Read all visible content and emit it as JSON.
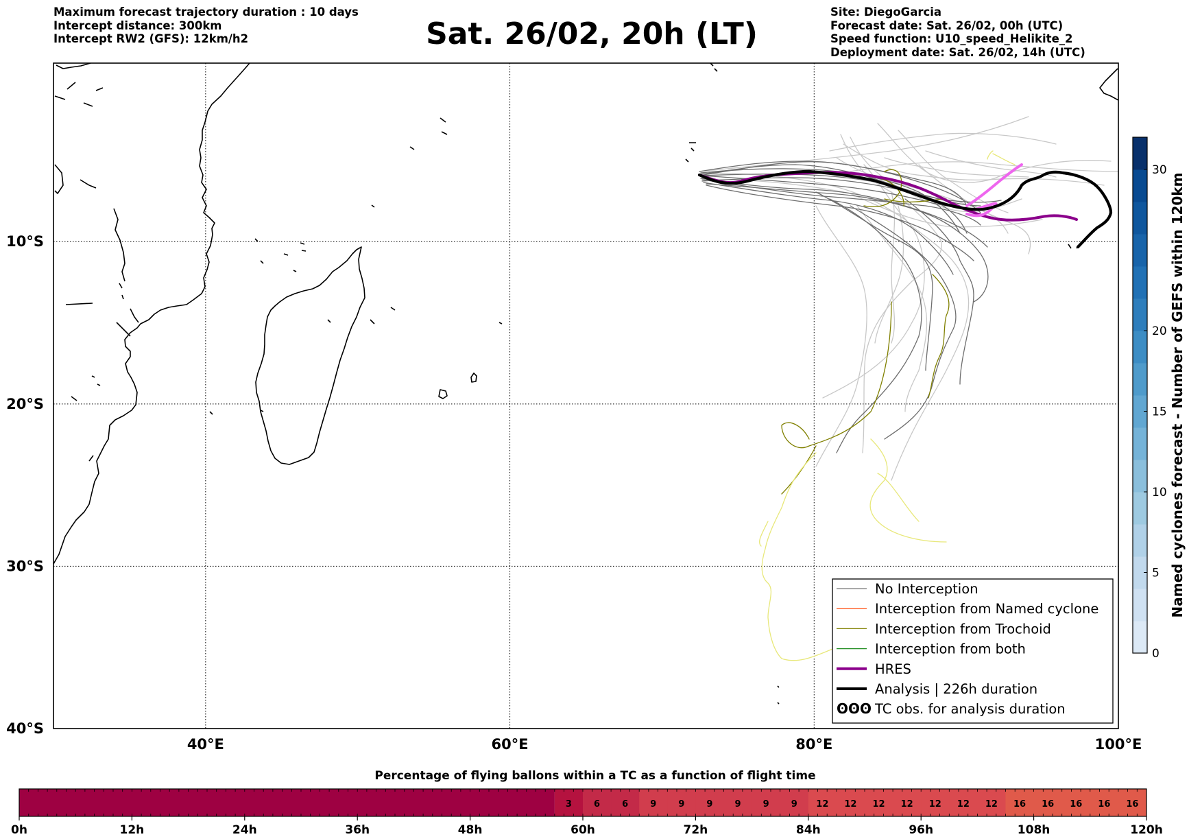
{
  "header": {
    "left": [
      "Maximum forecast trajectory duration : 10 days",
      "Intercept distance: 300km",
      "Intercept RW2 (GFS):  12km/h2"
    ],
    "title": "Sat. 26/02, 20h (LT)",
    "right": [
      "Site: DiegoGarcia",
      "Forecast date: Sat. 26/02, 00h (UTC)",
      "Speed function: U10_speed_Helikite_2",
      "Deployment date: Sat. 26/02, 14h (UTC)"
    ]
  },
  "map": {
    "lon_range": [
      30,
      100
    ],
    "lat_range": [
      -40,
      1
    ],
    "lon_ticks": [
      {
        "value": 40,
        "label": "40°E"
      },
      {
        "value": 60,
        "label": "60°E"
      },
      {
        "value": 80,
        "label": "80°E"
      },
      {
        "value": 100,
        "label": "100°E"
      }
    ],
    "lat_ticks": [
      {
        "value": -10,
        "label": "10°S"
      },
      {
        "value": -20,
        "label": "20°S"
      },
      {
        "value": -30,
        "label": "30°S"
      },
      {
        "value": -40,
        "label": "40°S"
      }
    ],
    "grid": "dotted",
    "legend": {
      "position": "bottom-right",
      "items": [
        {
          "label": "No Interception",
          "color": "#777777",
          "width": 1.3
        },
        {
          "label": "Interception from Named cyclone",
          "color": "#ff5a1f",
          "width": 1.3
        },
        {
          "label": "Interception from Trochoid",
          "color": "#808000",
          "width": 1.3
        },
        {
          "label": "Interception from both",
          "color": "#1a8a1a",
          "width": 1.3
        },
        {
          "label": "HRES",
          "color": "#8b008b",
          "width": 4
        },
        {
          "label": "Analysis | 226h duration",
          "color": "#000000",
          "width": 4
        },
        {
          "label": "TC obs. for analysis duration",
          "color": "#000000",
          "symbol": "ʘʘʘ",
          "glyph": "ʘʘʘ"
        }
      ]
    }
  },
  "colorbar_right": {
    "label": "Named cyclones forecast - Number of GEFS within 120km",
    "range": [
      0,
      32
    ],
    "ticks": [
      0,
      5,
      10,
      15,
      20,
      30
    ],
    "colors": [
      "#dce9f6",
      "#cfe1f2",
      "#c1d9ed",
      "#b0d1e8",
      "#9ecae1",
      "#8bbfdc",
      "#75b3d8",
      "#61a7d2",
      "#4f9bcb",
      "#3d8dc4",
      "#2e7ebc",
      "#2171b5",
      "#1864aa",
      "#0f579e",
      "#084a91",
      "#08306b"
    ]
  },
  "bottom_bar": {
    "title": "Percentage of flying ballons within a TC as a function of flight time",
    "x_ticks": [
      "0h",
      "12h",
      "24h",
      "36h",
      "48h",
      "60h",
      "72h",
      "84h",
      "96h",
      "108h",
      "120h"
    ],
    "values": [
      0,
      0,
      0,
      0,
      0,
      0,
      0,
      0,
      0,
      0,
      0,
      0,
      0,
      0,
      0,
      0,
      0,
      0,
      0,
      3,
      6,
      6,
      9,
      9,
      9,
      9,
      9,
      9,
      12,
      12,
      12,
      12,
      12,
      12,
      12,
      16,
      16,
      16,
      16,
      16
    ],
    "color_dark": "#9e0142",
    "color_levels": {
      "3": "#b5123f",
      "6": "#c32a48",
      "9": "#d13d4d",
      "12": "#da4a4f",
      "16": "#e05a4a"
    }
  }
}
